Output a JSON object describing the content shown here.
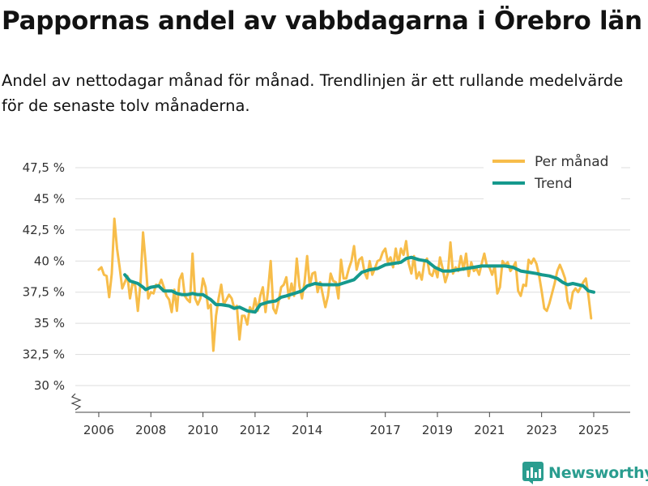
{
  "header": {
    "title": "Pappornas andel av vabbdagarna i Örebro län",
    "subtitle": "Andel av nettodagar månad för månad. Trendlinjen är ett rullande medelvärde för de senaste tolv månaderna."
  },
  "brand": {
    "name": "Newsworthy",
    "icon": "bar-chart-logo-icon"
  },
  "colors": {
    "monthly": "#f7bd4a",
    "trend": "#15998d",
    "grid": "#dddddd",
    "brand": "#2a9d8f"
  },
  "chart_data": {
    "type": "line",
    "title": "Pappornas andel av vabbdagarna i Örebro län",
    "xlabel": "",
    "ylabel": "",
    "ylim": [
      30,
      47.5
    ],
    "y_axis_break": true,
    "y_ticks": [
      {
        "value": 30,
        "label": "30 %"
      },
      {
        "value": 32.5,
        "label": "32,5 %"
      },
      {
        "value": 35,
        "label": "35 %"
      },
      {
        "value": 37.5,
        "label": "37,5 %"
      },
      {
        "value": 40,
        "label": "40 %"
      },
      {
        "value": 42.5,
        "label": "42,5 %"
      },
      {
        "value": 45,
        "label": "45 %"
      },
      {
        "value": 47.5,
        "label": "47,5 %"
      }
    ],
    "x_ticks": [
      {
        "value": 2006,
        "label": "2006"
      },
      {
        "value": 2008,
        "label": "2008"
      },
      {
        "value": 2010,
        "label": "2010"
      },
      {
        "value": 2012,
        "label": "2012"
      },
      {
        "value": 2014,
        "label": "2014"
      },
      {
        "value": 2017,
        "label": "2017"
      },
      {
        "value": 2019,
        "label": "2019"
      },
      {
        "value": 2021,
        "label": "2021"
      },
      {
        "value": 2023,
        "label": "2023"
      },
      {
        "value": 2025,
        "label": "2025"
      }
    ],
    "xlim": [
      2005.1,
      2026.4
    ],
    "legend": {
      "position": "top-right",
      "entries": [
        "Per månad",
        "Trend"
      ]
    },
    "series": [
      {
        "name": "Per månad",
        "color": "#f7bd4a",
        "points": [
          [
            2006.0,
            39.3
          ],
          [
            2006.1,
            39.5
          ],
          [
            2006.2,
            38.9
          ],
          [
            2006.3,
            38.8
          ],
          [
            2006.4,
            37.1
          ],
          [
            2006.5,
            39.0
          ],
          [
            2006.6,
            43.4
          ],
          [
            2006.7,
            41.0
          ],
          [
            2006.8,
            39.5
          ],
          [
            2006.9,
            37.8
          ],
          [
            2007.0,
            38.3
          ],
          [
            2007.1,
            38.8
          ],
          [
            2007.2,
            37.0
          ],
          [
            2007.3,
            38.3
          ],
          [
            2007.4,
            38.0
          ],
          [
            2007.5,
            36.0
          ],
          [
            2007.6,
            38.2
          ],
          [
            2007.7,
            42.3
          ],
          [
            2007.8,
            39.9
          ],
          [
            2007.9,
            37.0
          ],
          [
            2008.0,
            37.5
          ],
          [
            2008.1,
            37.4
          ],
          [
            2008.2,
            38.1
          ],
          [
            2008.3,
            38.0
          ],
          [
            2008.4,
            38.5
          ],
          [
            2008.5,
            37.9
          ],
          [
            2008.6,
            37.2
          ],
          [
            2008.7,
            36.9
          ],
          [
            2008.8,
            35.9
          ],
          [
            2008.9,
            37.7
          ],
          [
            2009.0,
            36.0
          ],
          [
            2009.1,
            38.5
          ],
          [
            2009.2,
            39.0
          ],
          [
            2009.3,
            37.2
          ],
          [
            2009.4,
            36.9
          ],
          [
            2009.5,
            36.7
          ],
          [
            2009.6,
            40.6
          ],
          [
            2009.7,
            37.0
          ],
          [
            2009.8,
            36.5
          ],
          [
            2009.9,
            37.0
          ],
          [
            2010.0,
            38.6
          ],
          [
            2010.1,
            37.9
          ],
          [
            2010.2,
            36.2
          ],
          [
            2010.3,
            36.5
          ],
          [
            2010.4,
            32.8
          ],
          [
            2010.5,
            35.6
          ],
          [
            2010.6,
            37.0
          ],
          [
            2010.7,
            38.1
          ],
          [
            2010.8,
            36.5
          ],
          [
            2010.9,
            36.9
          ],
          [
            2011.0,
            37.3
          ],
          [
            2011.1,
            37.0
          ],
          [
            2011.2,
            36.2
          ],
          [
            2011.3,
            36.4
          ],
          [
            2011.4,
            33.7
          ],
          [
            2011.5,
            35.6
          ],
          [
            2011.6,
            35.6
          ],
          [
            2011.7,
            34.9
          ],
          [
            2011.8,
            36.3
          ],
          [
            2011.9,
            35.9
          ],
          [
            2012.0,
            37.0
          ],
          [
            2012.1,
            36.0
          ],
          [
            2012.2,
            37.2
          ],
          [
            2012.3,
            37.9
          ],
          [
            2012.4,
            35.9
          ],
          [
            2012.5,
            37.7
          ],
          [
            2012.6,
            40.0
          ],
          [
            2012.7,
            36.2
          ],
          [
            2012.8,
            35.8
          ],
          [
            2012.9,
            36.7
          ],
          [
            2013.0,
            37.9
          ],
          [
            2013.1,
            38.1
          ],
          [
            2013.2,
            38.7
          ],
          [
            2013.3,
            37.0
          ],
          [
            2013.4,
            38.2
          ],
          [
            2013.5,
            37.2
          ],
          [
            2013.6,
            40.2
          ],
          [
            2013.7,
            38.0
          ],
          [
            2013.8,
            37.0
          ],
          [
            2013.9,
            38.3
          ],
          [
            2014.0,
            40.4
          ],
          [
            2014.1,
            38.0
          ],
          [
            2014.2,
            39.0
          ],
          [
            2014.3,
            39.1
          ],
          [
            2014.4,
            37.5
          ],
          [
            2014.5,
            38.3
          ],
          [
            2014.6,
            37.3
          ],
          [
            2014.7,
            36.3
          ],
          [
            2014.8,
            37.2
          ],
          [
            2014.9,
            39.0
          ],
          [
            2015.0,
            38.4
          ],
          [
            2015.1,
            38.3
          ],
          [
            2015.2,
            37.0
          ],
          [
            2015.3,
            40.1
          ],
          [
            2015.4,
            38.6
          ],
          [
            2015.5,
            38.6
          ],
          [
            2015.6,
            39.4
          ],
          [
            2015.7,
            40.0
          ],
          [
            2015.8,
            41.2
          ],
          [
            2015.9,
            39.3
          ],
          [
            2016.0,
            40.1
          ],
          [
            2016.1,
            40.3
          ],
          [
            2016.2,
            39.1
          ],
          [
            2016.3,
            38.6
          ],
          [
            2016.4,
            40.0
          ],
          [
            2016.5,
            38.9
          ],
          [
            2016.6,
            39.4
          ],
          [
            2016.7,
            40.0
          ],
          [
            2016.8,
            40.1
          ],
          [
            2016.9,
            40.7
          ],
          [
            2017.0,
            41.0
          ],
          [
            2017.1,
            39.9
          ],
          [
            2017.2,
            40.3
          ],
          [
            2017.3,
            39.5
          ],
          [
            2017.4,
            41.0
          ],
          [
            2017.5,
            39.8
          ],
          [
            2017.6,
            41.0
          ],
          [
            2017.7,
            40.5
          ],
          [
            2017.8,
            41.6
          ],
          [
            2017.9,
            39.8
          ],
          [
            2018.0,
            39.0
          ],
          [
            2018.1,
            40.4
          ],
          [
            2018.2,
            38.6
          ],
          [
            2018.3,
            39.1
          ],
          [
            2018.4,
            38.5
          ],
          [
            2018.5,
            39.9
          ],
          [
            2018.6,
            40.2
          ],
          [
            2018.7,
            39.0
          ],
          [
            2018.8,
            38.8
          ],
          [
            2018.9,
            39.5
          ],
          [
            2019.0,
            38.7
          ],
          [
            2019.1,
            40.3
          ],
          [
            2019.2,
            39.4
          ],
          [
            2019.3,
            38.3
          ],
          [
            2019.4,
            39.0
          ],
          [
            2019.5,
            41.5
          ],
          [
            2019.6,
            39.0
          ],
          [
            2019.7,
            39.5
          ],
          [
            2019.8,
            39.2
          ],
          [
            2019.9,
            40.4
          ],
          [
            2020.0,
            39.3
          ],
          [
            2020.1,
            40.6
          ],
          [
            2020.2,
            38.8
          ],
          [
            2020.3,
            39.9
          ],
          [
            2020.4,
            39.2
          ],
          [
            2020.5,
            39.4
          ],
          [
            2020.6,
            38.9
          ],
          [
            2020.7,
            39.8
          ],
          [
            2020.8,
            40.6
          ],
          [
            2020.9,
            39.6
          ],
          [
            2021.0,
            39.5
          ],
          [
            2021.1,
            38.9
          ],
          [
            2021.2,
            39.6
          ],
          [
            2021.3,
            37.4
          ],
          [
            2021.4,
            37.9
          ],
          [
            2021.5,
            40.0
          ],
          [
            2021.6,
            39.7
          ],
          [
            2021.7,
            39.9
          ],
          [
            2021.8,
            39.2
          ],
          [
            2021.9,
            39.5
          ],
          [
            2022.0,
            39.9
          ],
          [
            2022.1,
            37.6
          ],
          [
            2022.2,
            37.2
          ],
          [
            2022.3,
            38.1
          ],
          [
            2022.4,
            38.0
          ],
          [
            2022.5,
            40.1
          ],
          [
            2022.6,
            39.8
          ],
          [
            2022.7,
            40.2
          ],
          [
            2022.8,
            39.8
          ],
          [
            2022.9,
            38.9
          ],
          [
            2023.0,
            37.6
          ],
          [
            2023.1,
            36.2
          ],
          [
            2023.2,
            36.0
          ],
          [
            2023.3,
            36.6
          ],
          [
            2023.4,
            37.4
          ],
          [
            2023.5,
            38.2
          ],
          [
            2023.6,
            39.2
          ],
          [
            2023.7,
            39.7
          ],
          [
            2023.8,
            39.2
          ],
          [
            2023.9,
            38.6
          ],
          [
            2024.0,
            36.8
          ],
          [
            2024.1,
            36.2
          ],
          [
            2024.2,
            37.5
          ],
          [
            2024.3,
            37.8
          ],
          [
            2024.4,
            37.5
          ],
          [
            2024.5,
            37.9
          ],
          [
            2024.6,
            38.3
          ],
          [
            2024.7,
            38.6
          ],
          [
            2024.8,
            37.2
          ],
          [
            2024.9,
            35.4
          ]
        ]
      },
      {
        "name": "Trend",
        "color": "#15998d",
        "points": [
          [
            2007.0,
            38.9
          ],
          [
            2007.2,
            38.4
          ],
          [
            2007.5,
            38.2
          ],
          [
            2007.7,
            37.9
          ],
          [
            2007.8,
            37.7
          ],
          [
            2008.0,
            37.9
          ],
          [
            2008.3,
            38.0
          ],
          [
            2008.5,
            37.6
          ],
          [
            2008.8,
            37.6
          ],
          [
            2009.0,
            37.4
          ],
          [
            2009.2,
            37.3
          ],
          [
            2009.4,
            37.3
          ],
          [
            2009.6,
            37.4
          ],
          [
            2009.8,
            37.3
          ],
          [
            2010.0,
            37.3
          ],
          [
            2010.3,
            36.9
          ],
          [
            2010.5,
            36.5
          ],
          [
            2010.7,
            36.5
          ],
          [
            2011.0,
            36.4
          ],
          [
            2011.2,
            36.2
          ],
          [
            2011.4,
            36.3
          ],
          [
            2011.7,
            36.0
          ],
          [
            2012.0,
            35.9
          ],
          [
            2012.2,
            36.5
          ],
          [
            2012.5,
            36.7
          ],
          [
            2012.8,
            36.8
          ],
          [
            2013.0,
            37.1
          ],
          [
            2013.2,
            37.2
          ],
          [
            2013.5,
            37.4
          ],
          [
            2013.8,
            37.6
          ],
          [
            2014.0,
            38.0
          ],
          [
            2014.3,
            38.2
          ],
          [
            2014.6,
            38.1
          ],
          [
            2014.9,
            38.1
          ],
          [
            2015.2,
            38.1
          ],
          [
            2015.5,
            38.3
          ],
          [
            2015.8,
            38.5
          ],
          [
            2016.1,
            39.1
          ],
          [
            2016.4,
            39.3
          ],
          [
            2016.7,
            39.4
          ],
          [
            2017.0,
            39.7
          ],
          [
            2017.3,
            39.8
          ],
          [
            2017.6,
            39.9
          ],
          [
            2017.8,
            40.2
          ],
          [
            2018.0,
            40.3
          ],
          [
            2018.3,
            40.1
          ],
          [
            2018.6,
            40.0
          ],
          [
            2018.9,
            39.5
          ],
          [
            2019.2,
            39.2
          ],
          [
            2019.5,
            39.2
          ],
          [
            2019.8,
            39.3
          ],
          [
            2020.1,
            39.4
          ],
          [
            2020.4,
            39.5
          ],
          [
            2020.7,
            39.6
          ],
          [
            2021.0,
            39.6
          ],
          [
            2021.3,
            39.6
          ],
          [
            2021.6,
            39.6
          ],
          [
            2021.9,
            39.5
          ],
          [
            2022.2,
            39.2
          ],
          [
            2022.5,
            39.1
          ],
          [
            2022.8,
            39.0
          ],
          [
            2023.0,
            38.9
          ],
          [
            2023.3,
            38.8
          ],
          [
            2023.6,
            38.6
          ],
          [
            2023.8,
            38.3
          ],
          [
            2024.0,
            38.1
          ],
          [
            2024.2,
            38.2
          ],
          [
            2024.4,
            38.1
          ],
          [
            2024.6,
            38.0
          ],
          [
            2024.8,
            37.6
          ],
          [
            2025.0,
            37.5
          ]
        ]
      }
    ]
  }
}
